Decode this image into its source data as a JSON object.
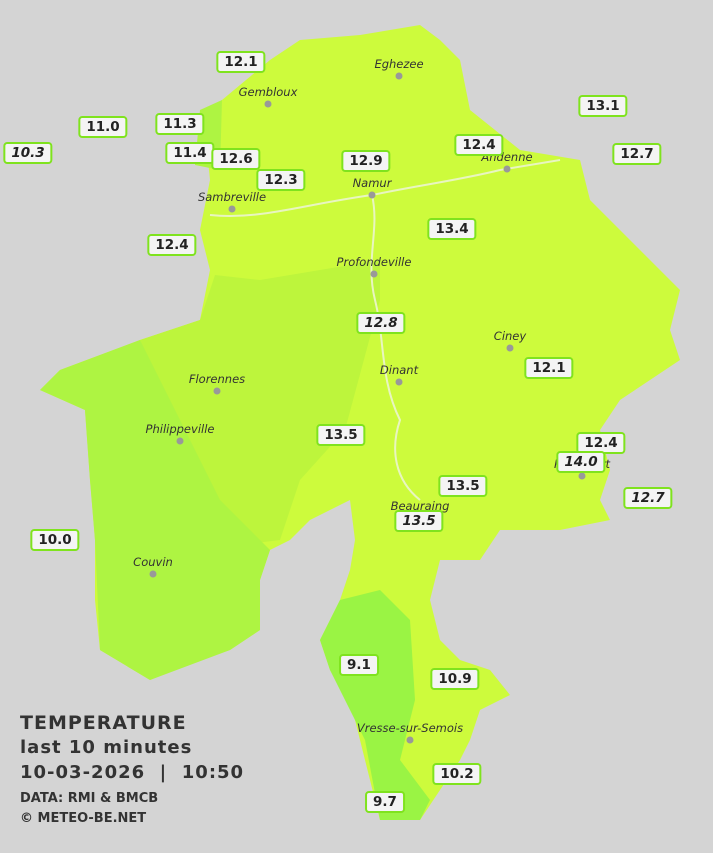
{
  "temperature_labels": [
    {
      "text": "12.1",
      "italic": false
    },
    {
      "text": "11.0",
      "italic": false
    },
    {
      "text": "11.3",
      "italic": false
    },
    {
      "text": "10.3",
      "italic": true
    },
    {
      "text": "11.4",
      "italic": false
    },
    {
      "text": "12.6",
      "italic": false
    },
    {
      "text": "12.3",
      "italic": false
    },
    {
      "text": "12.9",
      "italic": false
    },
    {
      "text": "12.4",
      "italic": false
    },
    {
      "text": "13.1",
      "italic": false
    },
    {
      "text": "12.7",
      "italic": false
    },
    {
      "text": "12.4",
      "italic": false
    },
    {
      "text": "13.4",
      "italic": false
    },
    {
      "text": "12.8",
      "italic": true
    },
    {
      "text": "12.1",
      "italic": false
    },
    {
      "text": "13.5",
      "italic": false
    },
    {
      "text": "12.4",
      "italic": false
    },
    {
      "text": "14.0",
      "italic": true
    },
    {
      "text": "13.5",
      "italic": false
    },
    {
      "text": "12.7",
      "italic": true
    },
    {
      "text": "13.5",
      "italic": true
    },
    {
      "text": "10.0",
      "italic": false
    },
    {
      "text": "9.1",
      "italic": false
    },
    {
      "text": "10.9",
      "italic": false
    },
    {
      "text": "10.2",
      "italic": false
    },
    {
      "text": "9.7",
      "italic": false
    }
  ],
  "towns": [
    "Eghezee",
    "Gembloux",
    "Andenne",
    "Namur",
    "Sambreville",
    "Profondeville",
    "Ciney",
    "Florennes",
    "Dinant",
    "Philippeville",
    "Rochefort",
    "Beauraing",
    "Couvin",
    "Vresse-sur-Semois"
  ],
  "legend": {
    "title": "TEMPERATURE",
    "subtitle": "last 10 minutes",
    "timestamp": "10-03-2026  |  10:50",
    "source": "DATA: RMI & BMCB",
    "copyright": "© METEO-BE.NET"
  }
}
